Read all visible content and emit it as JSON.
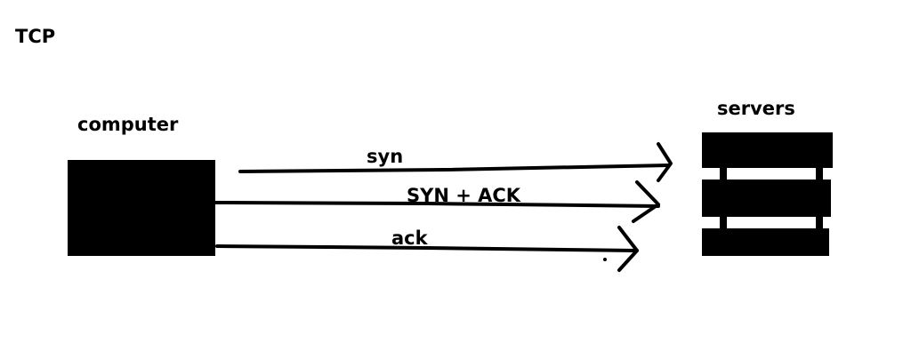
{
  "title": "TCP",
  "nodes": {
    "client": {
      "label": "computer"
    },
    "server": {
      "label": "servers"
    }
  },
  "arrows": [
    {
      "label": "syn"
    },
    {
      "label": "SYN + ACK"
    },
    {
      "label": "ack"
    }
  ],
  "colors": {
    "ink": "#000000",
    "background": "#ffffff"
  }
}
